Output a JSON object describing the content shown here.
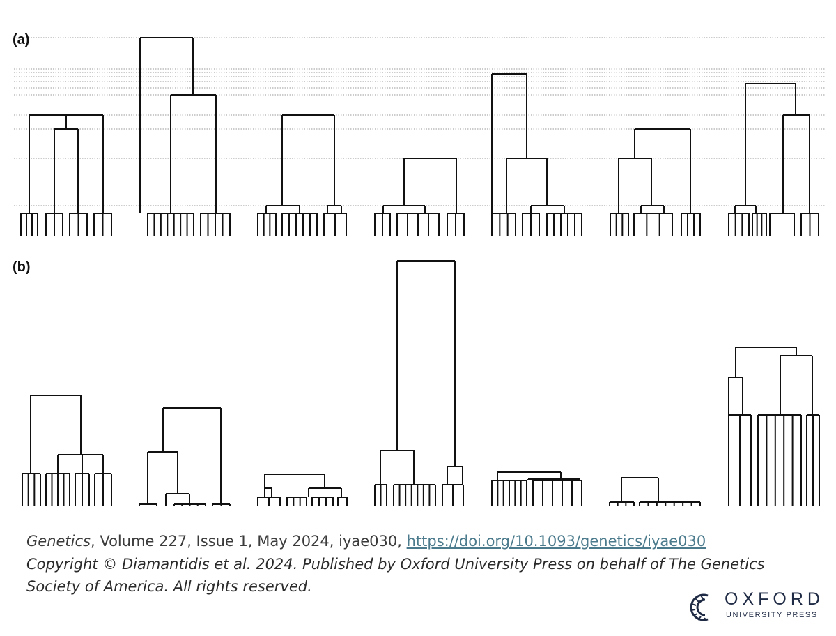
{
  "panels": {
    "a": {
      "label": "(a)",
      "gridline_count": 9,
      "trees": [
        {
          "leaf_groups": [
            4,
            3,
            3,
            3
          ],
          "internal_nodes": 2
        },
        {
          "leaf_groups": [
            8,
            5
          ],
          "internal_nodes": 2
        },
        {
          "leaf_groups": [
            4,
            6,
            3
          ],
          "internal_nodes": 3
        },
        {
          "leaf_groups": [
            3,
            5,
            3
          ],
          "internal_nodes": 3
        },
        {
          "leaf_groups": [
            4,
            3,
            6
          ],
          "internal_nodes": 3
        },
        {
          "leaf_groups": [
            4,
            4,
            4
          ],
          "internal_nodes": 3
        },
        {
          "leaf_groups": [
            4,
            4,
            2,
            3
          ],
          "internal_nodes": 3
        }
      ]
    },
    "b": {
      "label": "(b)",
      "trees": [
        {
          "leaf_groups": [
            4,
            5,
            3,
            3
          ],
          "internal_nodes": 3
        },
        {
          "leaf_groups": [
            2,
            1,
            5,
            3
          ],
          "internal_nodes": 3
        },
        {
          "leaf_groups": [
            3,
            4,
            4,
            2
          ],
          "internal_nodes": 4
        },
        {
          "leaf_groups": [
            3,
            8,
            3
          ],
          "internal_nodes": 3
        },
        {
          "leaf_groups": [
            7,
            6
          ],
          "internal_nodes": 3
        },
        {
          "leaf_groups": [
            4,
            8
          ],
          "internal_nodes": 2
        },
        {
          "leaf_groups": [
            3,
            6,
            3
          ],
          "internal_nodes": 3
        }
      ]
    }
  },
  "caption": {
    "journal": "Genetics",
    "citation": ", Volume 227, Issue 1, May 2024, iyae030, ",
    "doi": "https://doi.org/10.1093/genetics/iyae030",
    "copyright_line1": "Copyright © Diamantidis et al. 2024. Published by Oxford University Press on behalf of The Genetics",
    "copyright_line2": "Society of America. All rights reserved."
  },
  "logo": {
    "name": "oxford-university-press-logo",
    "word": "OXFORD",
    "subtitle": "UNIVERSITY PRESS",
    "color": "#1f2a44"
  }
}
